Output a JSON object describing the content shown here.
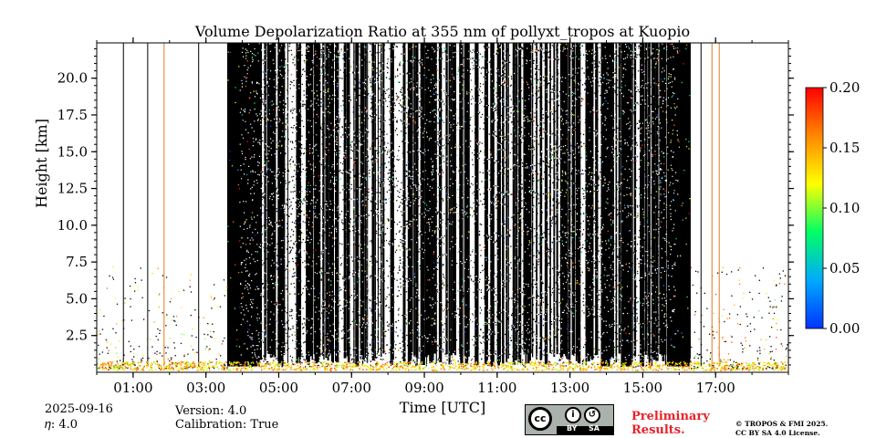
{
  "chart_data": {
    "type": "heatmap",
    "title": "Volume Depolarization Ratio at 355 nm of pollyxt_tropos at Kuopio",
    "xlabel": "Time [UTC]",
    "ylabel": "Height [km]",
    "xlim": [
      "00:00",
      "19:00"
    ],
    "ylim": [
      0,
      22.4
    ],
    "x_ticks": [
      "01:00",
      "03:00",
      "05:00",
      "07:00",
      "09:00",
      "11:00",
      "13:00",
      "15:00",
      "17:00"
    ],
    "y_ticks": [
      "2.5",
      "5.0",
      "7.5",
      "10.0",
      "12.5",
      "15.0",
      "17.5",
      "20.0"
    ],
    "colorbar": {
      "ticks": [
        "0.00",
        "0.05",
        "0.10",
        "0.15",
        "0.20"
      ],
      "range": [
        0,
        0.2
      ],
      "colors": [
        "#0033ff",
        "#00aaff",
        "#00ff66",
        "#ffff00",
        "#ff8800",
        "#ff0000"
      ]
    },
    "profile_lines": [
      {
        "time": "00:44",
        "color": "#000000"
      },
      {
        "time": "01:24",
        "color": "#000000"
      },
      {
        "time": "01:51",
        "color": "#e07a1f"
      },
      {
        "time": "02:48",
        "color": "#000000"
      },
      {
        "time": "15:12",
        "color": "#000000"
      },
      {
        "time": "16:36",
        "color": "#000000"
      },
      {
        "time": "16:54",
        "color": "#e07a1f"
      },
      {
        "time": "17:06",
        "color": "#e07a1f"
      }
    ],
    "dense_blocks": [
      {
        "start": "03:35",
        "end": "04:25"
      },
      {
        "start": "07:06",
        "end": "07:12"
      },
      {
        "start": "13:51",
        "end": "14:06"
      },
      {
        "start": "14:24",
        "end": "14:42"
      },
      {
        "start": "15:40",
        "end": "16:17"
      }
    ],
    "noise_period": {
      "start": "03:35",
      "end": "16:17"
    }
  },
  "meta": {
    "date": "2025-09-16",
    "eta": "𝜂: 4.0",
    "version": "Version: 4.0",
    "calibration": "Calibration: True"
  },
  "license": {
    "cc": "cc",
    "by": "BY",
    "sa": "SA",
    "preliminary": "Preliminary",
    "results": "Results.",
    "copyright_line1": "© TROPOS & FMI 2025.",
    "copyright_line2": "CC BY SA 4.0 License."
  }
}
